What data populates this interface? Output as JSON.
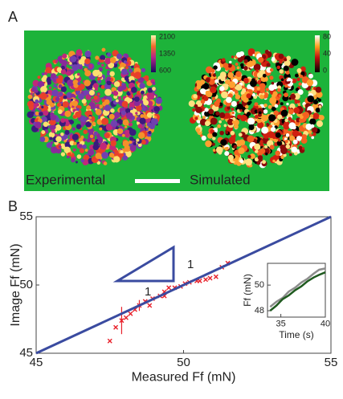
{
  "panel_a": {
    "label": "A",
    "left_label": "Experimental",
    "right_label": "Simulated",
    "colorbar_left": {
      "ticks": [
        2100,
        1350,
        600
      ]
    },
    "colorbar_right": {
      "ticks": [
        80,
        40,
        0
      ]
    }
  },
  "panel_b_label": "B",
  "chart_data": [
    {
      "type": "scatter",
      "xlabel": "Measured Ff (mN)",
      "ylabel": "Image Ff (mN)",
      "xlim": [
        45,
        55
      ],
      "ylim": [
        45,
        55
      ],
      "xticks": [
        45,
        50,
        55
      ],
      "yticks": [
        45,
        50,
        55
      ],
      "annotations": [
        "1",
        "1"
      ],
      "series": [
        {
          "type": "scatter",
          "color": "#e8202a",
          "x": [
            47.5,
            47.7,
            47.9,
            48.05,
            48.2,
            48.35,
            48.5,
            48.7,
            48.85,
            48.95,
            49.2,
            49.35,
            49.35,
            49.5,
            49.7,
            49.9,
            50.05,
            50.2,
            50.45,
            50.55,
            50.75,
            50.9,
            51.1,
            51.3,
            51.5
          ],
          "values": [
            45.9,
            46.9,
            47.4,
            47.6,
            47.9,
            48.2,
            48.5,
            48.8,
            48.5,
            49.0,
            49.2,
            49.5,
            49.2,
            49.8,
            49.8,
            49.9,
            50.1,
            50.2,
            50.3,
            50.3,
            50.4,
            50.5,
            50.6,
            51.3,
            51.6
          ],
          "errors": [
            null,
            null,
            1.0,
            null,
            null,
            null,
            0.4,
            null,
            null,
            null,
            null,
            null,
            null,
            null,
            null,
            null,
            null,
            null,
            null,
            null,
            null,
            null,
            null,
            null,
            null
          ]
        },
        {
          "type": "line",
          "color": "#3a4ba0",
          "x": [
            45,
            55
          ],
          "values": [
            45,
            55
          ]
        }
      ]
    },
    {
      "type": "line",
      "xlabel": "Time (s)",
      "ylabel": "Ff (mN)",
      "xlim": [
        33.5,
        40
      ],
      "ylim": [
        47.5,
        51.7
      ],
      "xticks": [
        35,
        40
      ],
      "yticks": [
        48,
        50
      ],
      "series": [
        {
          "color": "#8c8c8c",
          "x": [
            33.8,
            34.5,
            35.2,
            35.9,
            36.6,
            37.3,
            38.0,
            38.7,
            39.3,
            40.0
          ],
          "values": [
            48.3,
            48.7,
            49.0,
            49.5,
            49.8,
            50.2,
            50.5,
            50.9,
            51.2,
            51.3
          ]
        },
        {
          "color": "#1f5a1f",
          "x": [
            33.8,
            34.5,
            35.2,
            35.9,
            36.6,
            37.3,
            38.0,
            38.7,
            39.3,
            40.0
          ],
          "values": [
            48.0,
            48.4,
            48.9,
            49.2,
            49.6,
            49.9,
            50.3,
            50.6,
            50.8,
            51.0
          ]
        }
      ]
    }
  ]
}
